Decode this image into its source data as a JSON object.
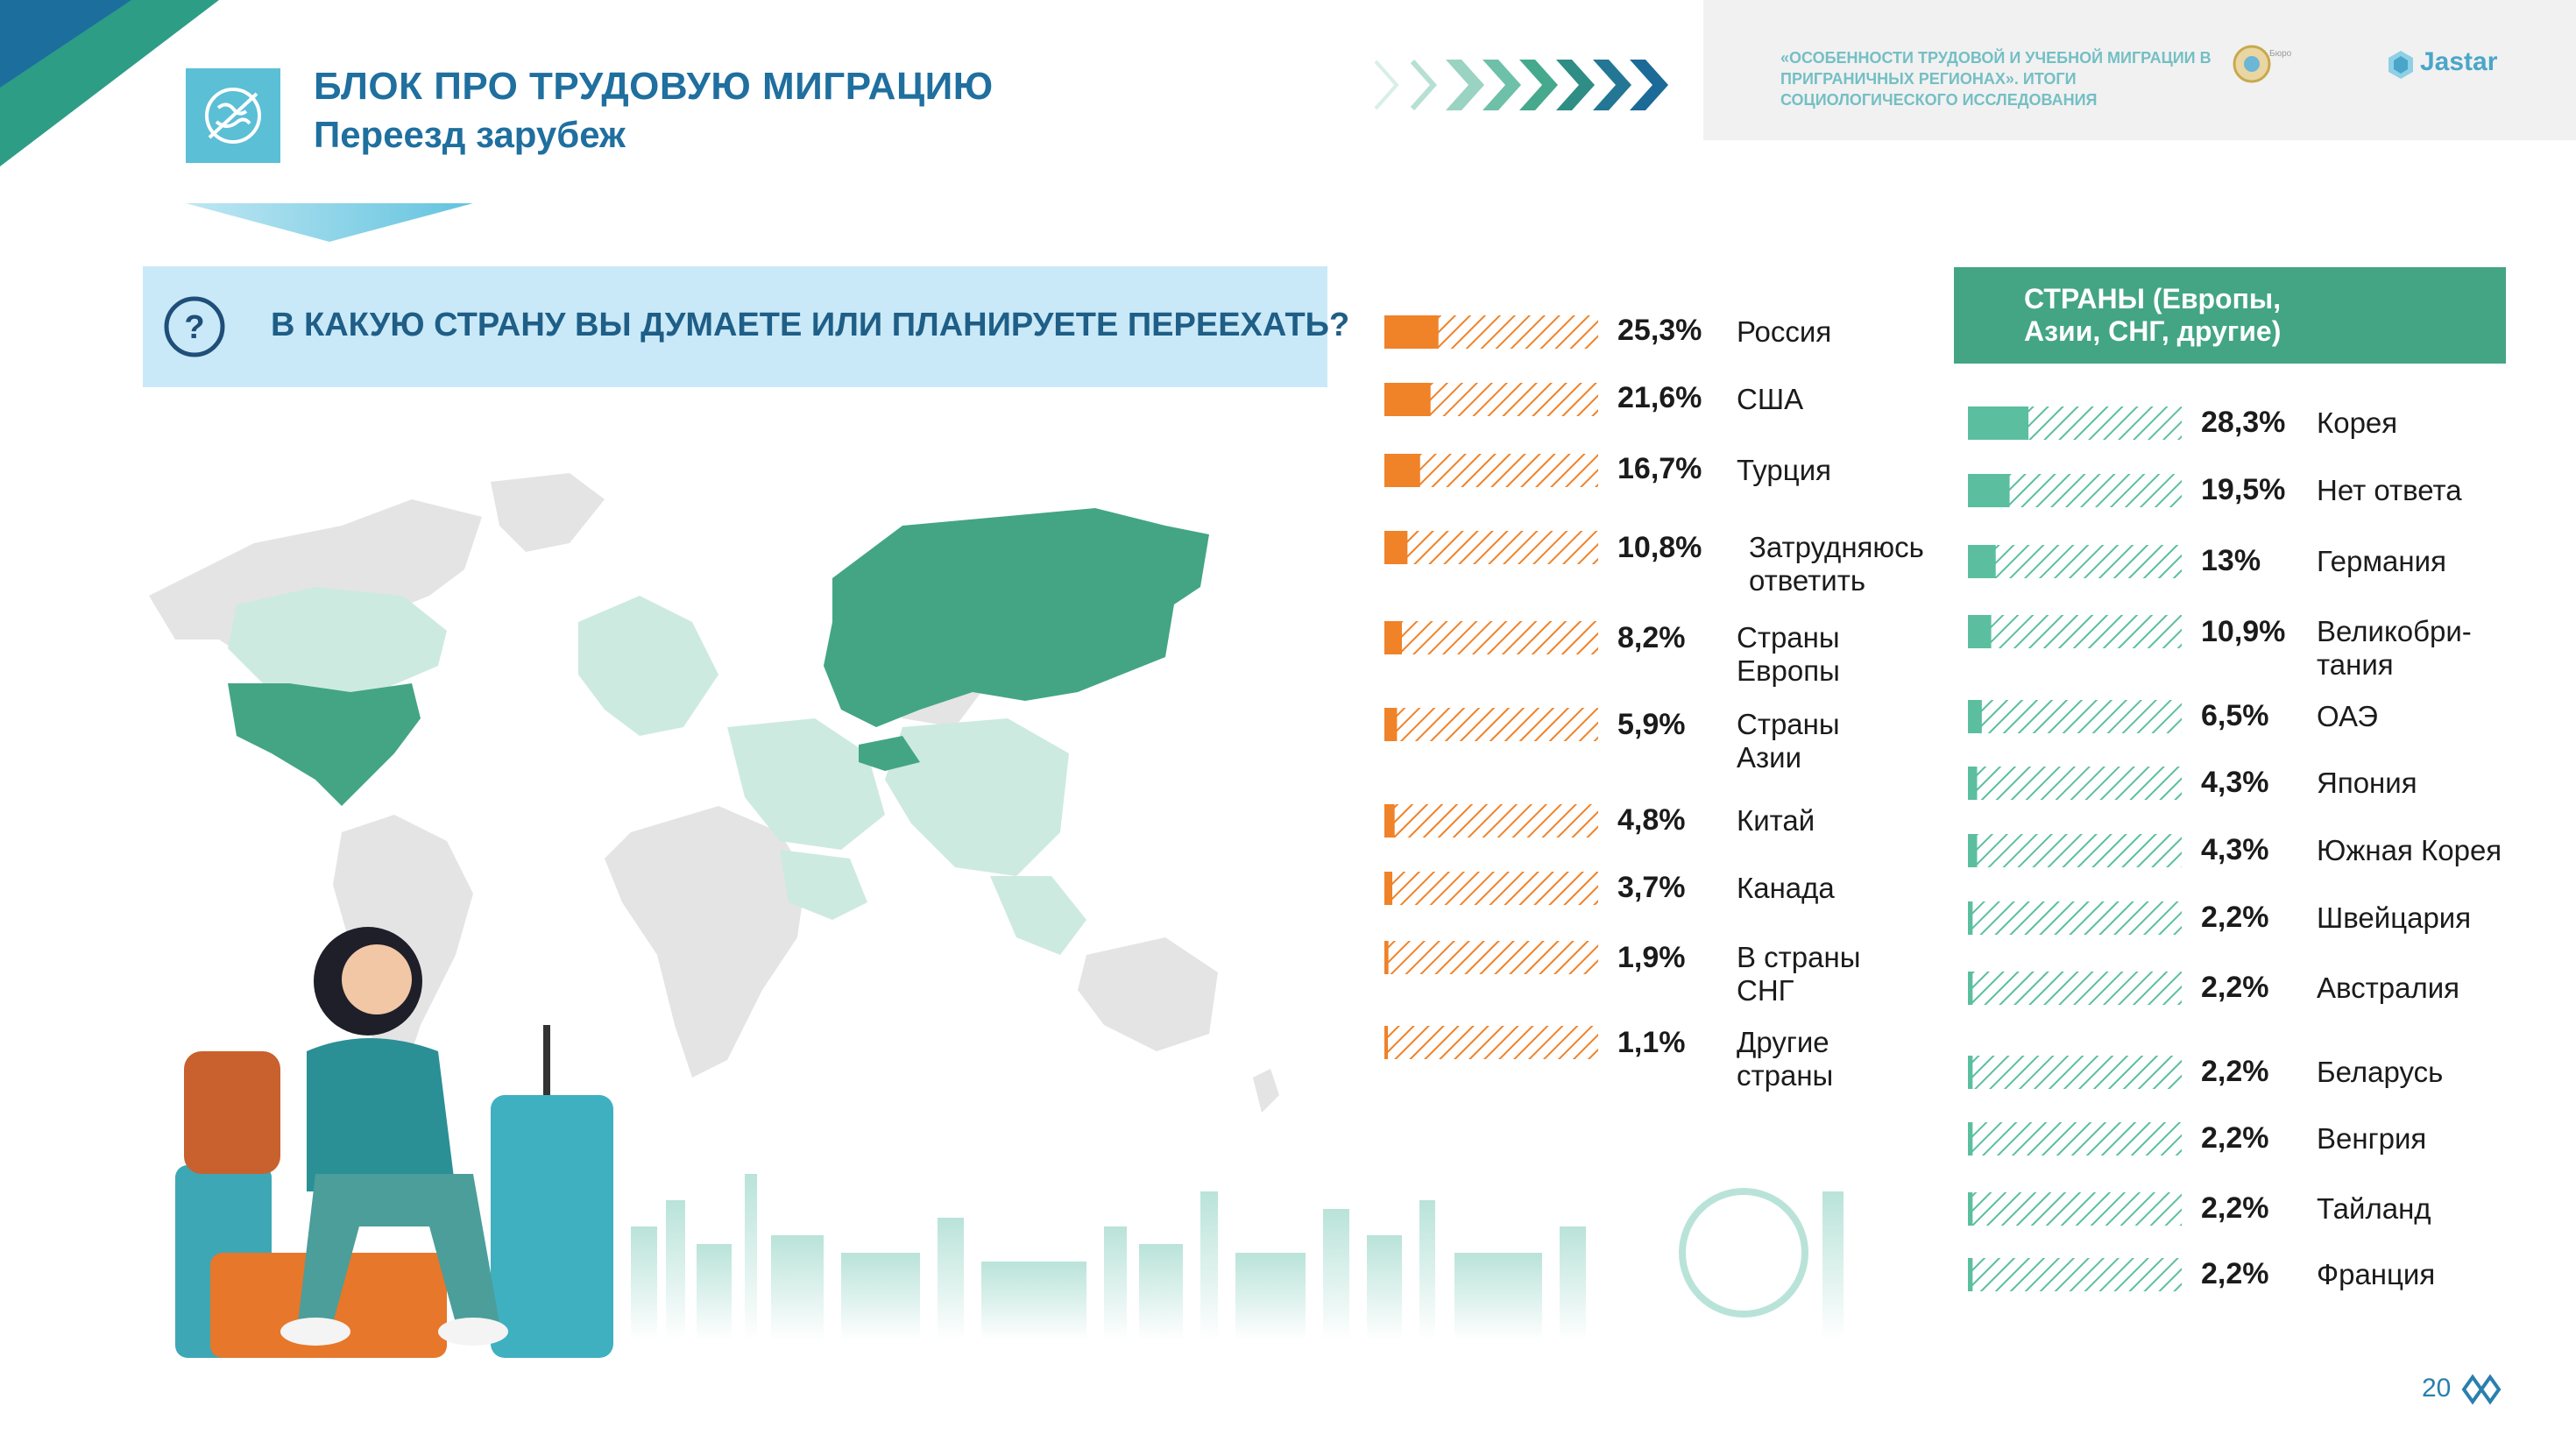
{
  "header": {
    "title": "БЛОК ПРО ТРУДОВУЮ МИГРАЦИЮ",
    "subtitle": "Переезд зарубеж",
    "icon": "migration-globe-icon"
  },
  "report": {
    "title": "«ОСОБЕННОСТИ ТРУДОВОЙ И УЧЕБНОЙ МИГРАЦИИ В ПРИГРАНИЧНЫХ РЕГИОНАХ». ИТОГИ СОЦИОЛОГИЧЕСКОГО ИССЛЕДОВАНИЯ",
    "agency_text": "Бюро",
    "brand": "Jastar"
  },
  "question": {
    "icon": "question-icon",
    "text": "В КАКУЮ СТРАНУ ВЫ ДУМАЕТЕ ИЛИ ПЛАНИРУЕТЕ ПЕРЕЕХАТЬ?"
  },
  "colors": {
    "primary": "#1f6f9f",
    "orange": "#f08228",
    "green": "#5bbf9f",
    "map_dark": "#43a584",
    "map_light": "#cdeae0",
    "map_gray": "#e4e4e4"
  },
  "chart_data": [
    {
      "type": "bar",
      "categories": [
        "Россия",
        "США",
        "Турция",
        "Затрудняюсь ответить",
        "Страны Европы",
        "Страны Азии",
        "Китай",
        "Канада",
        "В страны СНГ",
        "Другие страны"
      ],
      "labels": [
        "25,3%",
        "21,6%",
        "16,7%",
        "10,8%",
        "8,2%",
        "5,9%",
        "4,8%",
        "3,7%",
        "1,9%",
        "1,1%"
      ],
      "values": [
        25.3,
        21.6,
        16.7,
        10.8,
        8.2,
        5.9,
        4.8,
        3.7,
        1.9,
        1.1
      ],
      "xlim": [
        0,
        100
      ],
      "color": "#f08228"
    },
    {
      "type": "bar",
      "title": "СТРАНЫ (Европы, Азии, СНГ, другие)",
      "categories": [
        "Корея",
        "Нет ответа",
        "Германия",
        "Великобри- тания",
        "ОАЭ",
        "Япония",
        "Южная Корея",
        "Швейцария",
        "Австралия",
        "Беларусь",
        "Венгрия",
        "Тайланд",
        "Франция"
      ],
      "labels": [
        "28,3%",
        "19,5%",
        "13%",
        "10,9%",
        "6,5%",
        "4,3%",
        "4,3%",
        "2,2%",
        "2,2%",
        "2,2%",
        "2,2%",
        "2,2%",
        "2,2%"
      ],
      "values": [
        28.3,
        19.5,
        13,
        10.9,
        6.5,
        4.3,
        4.3,
        2.2,
        2.2,
        2.2,
        2.2,
        2.2,
        2.2
      ],
      "xlim": [
        0,
        100
      ],
      "color": "#5bbf9f"
    }
  ],
  "page": {
    "number": "20"
  }
}
